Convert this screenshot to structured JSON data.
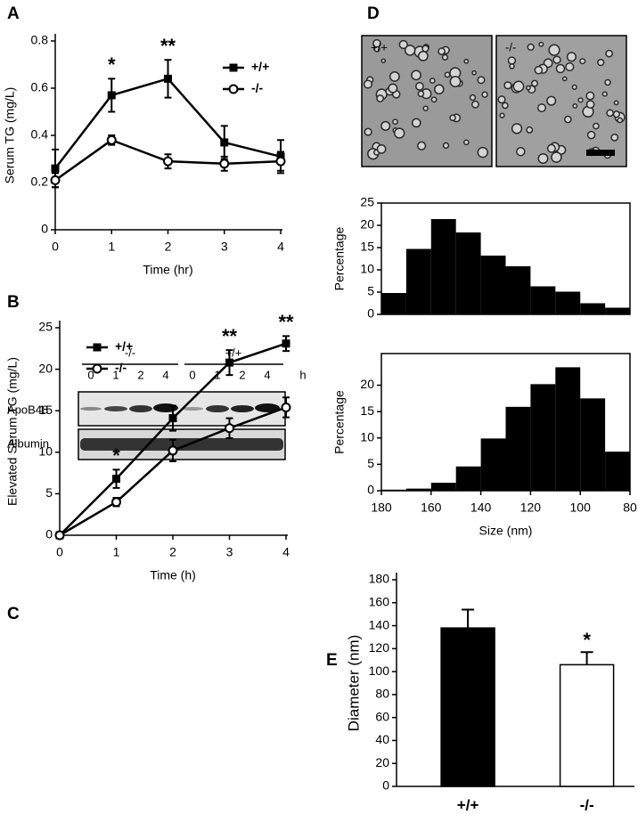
{
  "chart_data": [
    {
      "type": "line",
      "panel_label": "A",
      "xlabel": "Time (hr)",
      "ylabel": "Serum TG (mg/L)",
      "x": [
        0,
        1,
        2,
        3,
        4
      ],
      "xlim": [
        0,
        4
      ],
      "xticks": [
        0,
        1,
        2,
        3,
        4
      ],
      "ylim": [
        0,
        0.8
      ],
      "yticks": [
        0,
        0.2,
        0.4,
        0.6,
        0.8
      ],
      "legend": "upper right",
      "series": [
        {
          "name": "+/+",
          "color": "#000000",
          "marker": "square",
          "values": [
            0.26,
            0.57,
            0.64,
            0.37,
            0.31
          ],
          "errors": [
            0.08,
            0.07,
            0.08,
            0.07,
            0.07
          ]
        },
        {
          "name": "-/-",
          "color": "#000000",
          "marker": "circle",
          "values": [
            0.21,
            0.38,
            0.29,
            0.28,
            0.29
          ],
          "errors": [
            0.03,
            0.02,
            0.03,
            0.03,
            0.04
          ]
        }
      ],
      "annotations": [
        {
          "text": "*",
          "x": 1
        },
        {
          "text": "**",
          "x": 2
        }
      ]
    },
    {
      "type": "line",
      "panel_label": "B",
      "xlabel": "Time (h)",
      "ylabel": "Elevated Serum TG (mg/L)",
      "x": [
        0,
        1,
        2,
        3,
        4
      ],
      "xlim": [
        0,
        4
      ],
      "xticks": [
        0,
        1,
        2,
        3,
        4
      ],
      "ylim": [
        0,
        25
      ],
      "yticks": [
        0,
        5,
        10,
        15,
        20,
        25
      ],
      "legend": "upper left",
      "series": [
        {
          "name": "+/+",
          "color": "#000000",
          "marker": "square",
          "values": [
            0,
            6.8,
            14.1,
            20.8,
            23.1
          ],
          "errors": [
            0,
            1.1,
            1.5,
            1.5,
            0.9
          ]
        },
        {
          "name": "-/-",
          "color": "#000000",
          "marker": "circle",
          "values": [
            0,
            4.0,
            10.2,
            12.9,
            15.4
          ],
          "errors": [
            0,
            0.5,
            1.3,
            1.2,
            1.2
          ]
        }
      ],
      "annotations": [
        {
          "text": "*",
          "x": 1
        },
        {
          "text": "**",
          "x": 3
        },
        {
          "text": "**",
          "x": 4
        }
      ]
    },
    {
      "type": "histogram",
      "ylabel": "Percentage",
      "color": "#000000",
      "bins": [
        180,
        170,
        160,
        150,
        140,
        130,
        120,
        110,
        100,
        90,
        80
      ],
      "values": [
        4.8,
        14.7,
        21.4,
        18.4,
        13.2,
        10.8,
        6.3,
        5.1,
        2.5,
        1.5
      ],
      "xlim": [
        180,
        80
      ],
      "ylim": [
        0,
        25
      ],
      "yticks": [
        0,
        5,
        10,
        15,
        20,
        25
      ]
    },
    {
      "type": "histogram",
      "ylabel": "Percentage",
      "xlabel": "Size (nm)",
      "color": "#000000",
      "bins": [
        180,
        170,
        160,
        150,
        140,
        130,
        120,
        110,
        100,
        90,
        80
      ],
      "values": [
        0.2,
        0.4,
        1.5,
        4.6,
        9.9,
        15.9,
        20.2,
        23.4,
        17.5,
        7.4
      ],
      "xlim": [
        180,
        80
      ],
      "xticks": [
        180,
        160,
        140,
        120,
        100,
        80
      ],
      "ylim": [
        0,
        26
      ],
      "yticks": [
        0,
        5,
        10,
        15,
        20
      ]
    },
    {
      "type": "bar",
      "panel_label": "E",
      "ylabel": "Diameter (nm)",
      "categories": [
        "+/+",
        "-/-"
      ],
      "values": [
        138,
        106
      ],
      "errors": [
        16,
        11
      ],
      "colors": [
        "#000000",
        "#ffffff"
      ],
      "ylim": [
        0,
        180
      ],
      "yticks": [
        0,
        20,
        40,
        60,
        80,
        100,
        120,
        140,
        160,
        180
      ],
      "annotations": [
        {
          "text": "*",
          "x": 1
        }
      ]
    }
  ],
  "blot": {
    "panel_label": "C",
    "groups": [
      "-/-",
      "+/+"
    ],
    "lanes": [
      "0",
      "1",
      "2",
      "4",
      "0",
      "1",
      "2",
      "4"
    ],
    "unit": "h",
    "rows": [
      "ApoB48",
      "Albumin"
    ]
  },
  "micrographs": {
    "panel_label": "D",
    "images": [
      "+/+",
      "-/-"
    ]
  }
}
